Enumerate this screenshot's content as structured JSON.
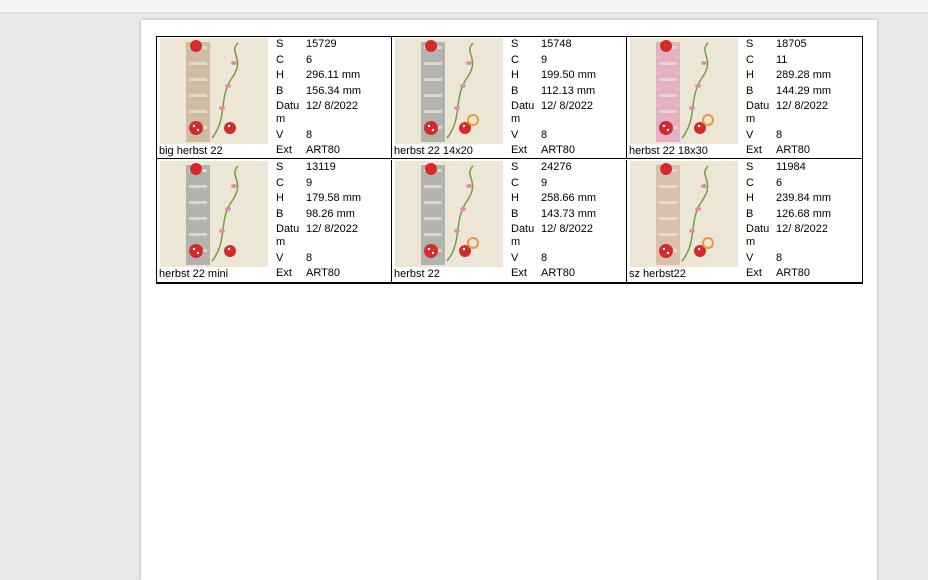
{
  "cells": [
    {
      "name": "big herbst 22",
      "fields": [
        {
          "key": "S",
          "value": "15729"
        },
        {
          "key": "C",
          "value": "6"
        },
        {
          "key": "H",
          "value": "296.11 mm"
        },
        {
          "key": "B",
          "value": "156.34 mm"
        },
        {
          "key": "Datum",
          "value": "12/ 8/2022"
        },
        {
          "key": "V",
          "value": "8"
        },
        {
          "key": "Ext",
          "value": "ART80"
        }
      ]
    },
    {
      "name": "herbst 22 14x20",
      "fields": [
        {
          "key": "S",
          "value": "15748"
        },
        {
          "key": "C",
          "value": "9"
        },
        {
          "key": "H",
          "value": "199.50 mm"
        },
        {
          "key": "B",
          "value": "112.13 mm"
        },
        {
          "key": "Datum",
          "value": "12/ 8/2022"
        },
        {
          "key": "V",
          "value": "8"
        },
        {
          "key": "Ext",
          "value": "ART80"
        }
      ]
    },
    {
      "name": "herbst 22 18x30",
      "fields": [
        {
          "key": "S",
          "value": "18705"
        },
        {
          "key": "C",
          "value": "11"
        },
        {
          "key": "H",
          "value": "289.28 mm"
        },
        {
          "key": "B",
          "value": "144.29 mm"
        },
        {
          "key": "Datum",
          "value": "12/ 8/2022"
        },
        {
          "key": "V",
          "value": "8"
        },
        {
          "key": "Ext",
          "value": "ART80"
        }
      ]
    },
    {
      "name": "herbst 22 mini",
      "fields": [
        {
          "key": "S",
          "value": "13119"
        },
        {
          "key": "C",
          "value": "9"
        },
        {
          "key": "H",
          "value": "179.58 mm"
        },
        {
          "key": "B",
          "value": "98.26 mm"
        },
        {
          "key": "Datum",
          "value": "12/ 8/2022"
        },
        {
          "key": "V",
          "value": "8"
        },
        {
          "key": "Ext",
          "value": "ART80"
        }
      ]
    },
    {
      "name": "herbst 22",
      "fields": [
        {
          "key": "S",
          "value": "24276"
        },
        {
          "key": "C",
          "value": "9"
        },
        {
          "key": "H",
          "value": "258.66 mm"
        },
        {
          "key": "B",
          "value": "143.73 mm"
        },
        {
          "key": "Datum",
          "value": "12/ 8/2022"
        },
        {
          "key": "V",
          "value": "8"
        },
        {
          "key": "Ext",
          "value": "ART80"
        }
      ]
    },
    {
      "name": "sz herbst22",
      "fields": [
        {
          "key": "S",
          "value": "11984"
        },
        {
          "key": "C",
          "value": "6"
        },
        {
          "key": "H",
          "value": "239.84 mm"
        },
        {
          "key": "B",
          "value": "126.68 mm"
        },
        {
          "key": "Datum",
          "value": "12/ 8/2022"
        },
        {
          "key": "V",
          "value": "8"
        },
        {
          "key": "Ext",
          "value": "ART80"
        }
      ]
    }
  ]
}
